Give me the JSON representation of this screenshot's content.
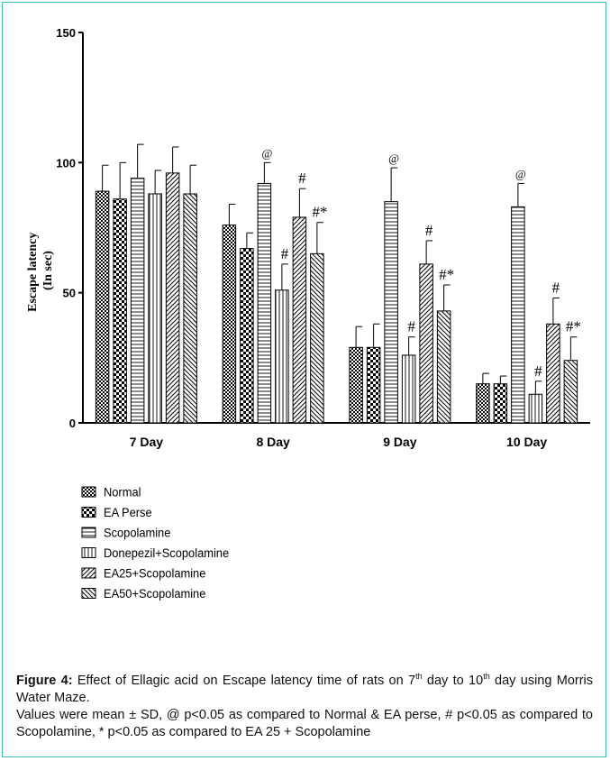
{
  "chart_data": {
    "type": "bar",
    "ylabel_line1": "Escape latency",
    "ylabel_line2": "(In sec)",
    "ylim": [
      0,
      150
    ],
    "yticks": [
      "0",
      "50",
      "100",
      "150"
    ],
    "categories": [
      "7 Day",
      "8 Day",
      "9 Day",
      "10 Day"
    ],
    "series": [
      {
        "name": "Normal",
        "pattern": "checker-fine",
        "values": [
          89,
          76,
          29,
          15
        ],
        "sd": [
          10,
          8,
          8,
          4
        ],
        "marks": [
          "",
          "",
          "",
          ""
        ]
      },
      {
        "name": "EA Perse",
        "pattern": "checker-coarse",
        "values": [
          86,
          67,
          29,
          15
        ],
        "sd": [
          14,
          6,
          9,
          3
        ],
        "marks": [
          "",
          "",
          "",
          ""
        ]
      },
      {
        "name": "Scopolamine",
        "pattern": "horizontal",
        "values": [
          94,
          92,
          85,
          83
        ],
        "sd": [
          13,
          8,
          13,
          9
        ],
        "marks": [
          "",
          "@",
          "@",
          "@"
        ]
      },
      {
        "name": "Donepezil+Scopolamine",
        "pattern": "vertical",
        "values": [
          88,
          51,
          26,
          11
        ],
        "sd": [
          9,
          10,
          7,
          5
        ],
        "marks": [
          "",
          "#",
          "#",
          "#"
        ]
      },
      {
        "name": "EA25+Scopolamine",
        "pattern": "diag-up",
        "values": [
          96,
          79,
          61,
          38
        ],
        "sd": [
          10,
          11,
          9,
          10
        ],
        "marks": [
          "",
          "#",
          "#",
          "#"
        ]
      },
      {
        "name": "EA50+Scopolamine",
        "pattern": "diag-down",
        "values": [
          88,
          65,
          43,
          24
        ],
        "sd": [
          11,
          12,
          10,
          9
        ],
        "marks": [
          "",
          "#*",
          "#*",
          "#*"
        ]
      }
    ]
  },
  "caption": {
    "figure_label": "Figure 4:",
    "line1_a": " Effect of Ellagic acid on Escape latency time of rats on 7",
    "line1_sup1": "th",
    "line1_b": " day to 10",
    "line1_sup2": "th",
    "line1_c": " day using Morris Water Maze.",
    "line2": "Values were mean ± SD, @ p<0.05 as compared to Normal & EA perse, # p<0.05 as compared to Scopolamine, * p<0.05 as compared to EA 25 + Scopolamine"
  }
}
